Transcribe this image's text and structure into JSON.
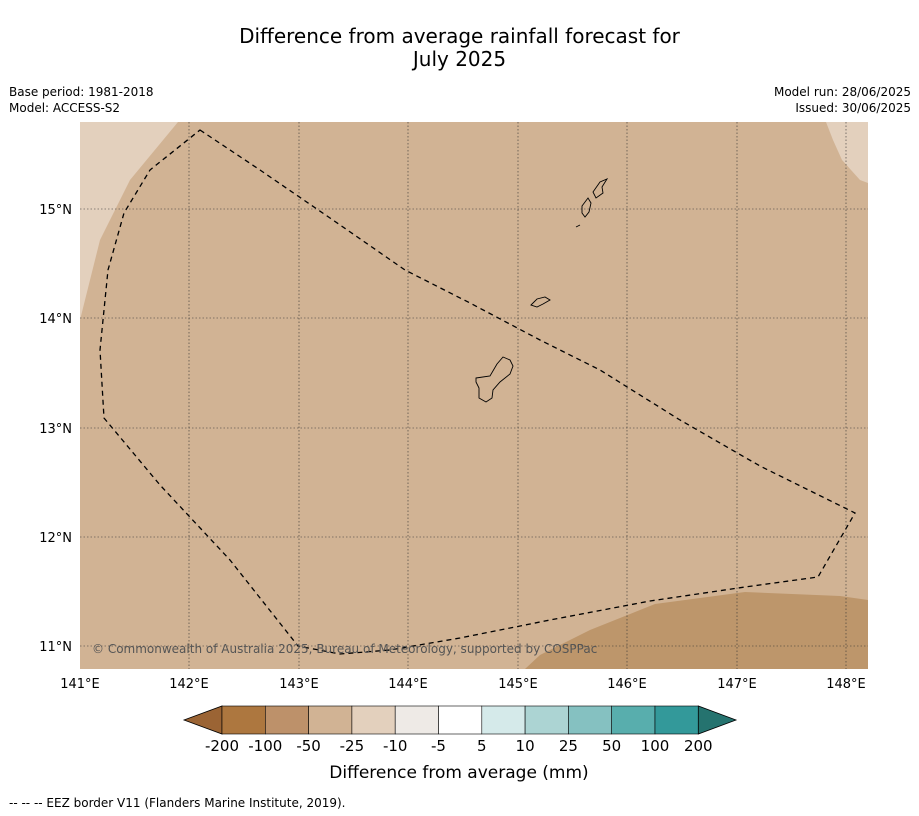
{
  "title": {
    "line1": "Difference from average rainfall forecast for",
    "line2": "July 2025"
  },
  "meta": {
    "base_period": "Base period: 1981-2018",
    "model": "Model: ACCESS-S2",
    "model_run": "Model run: 28/06/2025",
    "issued": "Issued: 30/06/2025"
  },
  "map": {
    "lon_ticks": [
      "141°E",
      "142°E",
      "143°E",
      "144°E",
      "145°E",
      "146°E",
      "147°E",
      "148°E"
    ],
    "lat_ticks": [
      "15°N",
      "14°N",
      "13°N",
      "12°N",
      "11°N"
    ],
    "copyright": "© Commonwealth of Australia 2025, Bureau of Meteorology, supported by COSPPac",
    "colors": {
      "background_category": "#d1b394",
      "light_category": "#e3d0bd",
      "dark_category": "#bd966b"
    }
  },
  "colorbar": {
    "labels": [
      "-200",
      "-100",
      "-50",
      "-25",
      "-10",
      "-5",
      "5",
      "10",
      "25",
      "50",
      "100",
      "200"
    ],
    "colors": [
      "#9b6434",
      "#ad773f",
      "#bd916a",
      "#d1b394",
      "#e3d0bd",
      "#eeeae6",
      "#ffffff",
      "#d5eaea",
      "#acd4d3",
      "#85c1c1",
      "#58aead",
      "#33999a",
      "#25736f"
    ],
    "title": "Difference from average (mm)"
  },
  "footnote": "--  --  -- EEZ border V11 (Flanders Marine Institute, 2019)."
}
